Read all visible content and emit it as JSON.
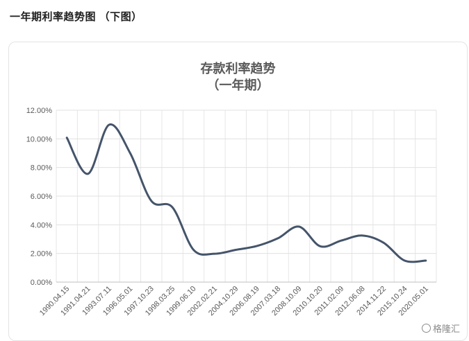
{
  "page": {
    "heading": "一年期利率趋势图 （下图）"
  },
  "watermark": {
    "icon": "gelonghui-logo-icon",
    "text": "格隆汇"
  },
  "chart_data": {
    "type": "line",
    "title": "存款利率趋势",
    "subtitle": "（一年期）",
    "xlabel": "",
    "ylabel": "",
    "ylim": [
      0,
      12
    ],
    "yticks": [
      "0.00%",
      "2.00%",
      "4.00%",
      "6.00%",
      "8.00%",
      "10.00%",
      "12.00%"
    ],
    "grid": true,
    "legend": "none",
    "x_tick_labels": [
      "1990.04.15",
      "1991.04.21",
      "1993.07.11",
      "1996.05.01",
      "1997.10.23",
      "1998.03.25",
      "1999.06.10",
      "2002.02.21",
      "2004.10.29",
      "2006.08.19",
      "2007.03.18",
      "2008.10.09",
      "2010.10.20",
      "2011.02.09",
      "2012.06.08",
      "2014.11.22",
      "2015.10.24",
      "2020.05.01"
    ],
    "series": [
      {
        "name": "",
        "color": "#44546a",
        "values": [
          10.08,
          7.56,
          10.98,
          9.0,
          5.67,
          5.22,
          2.25,
          1.98,
          2.25,
          2.52,
          3.06,
          3.87,
          2.5,
          2.9,
          3.25,
          2.75,
          1.5,
          1.5
        ]
      }
    ]
  }
}
